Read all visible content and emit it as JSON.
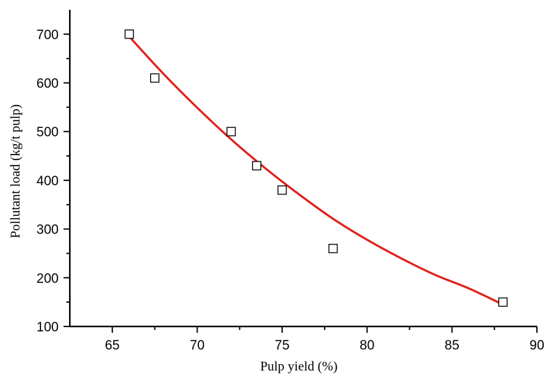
{
  "chart_data": {
    "type": "scatter",
    "title": "",
    "xlabel": "Pulp yield (%)",
    "ylabel": "Pollutant load (kg/t pulp)",
    "xlim": [
      62.5,
      90
    ],
    "ylim": [
      100,
      750
    ],
    "xticks": [
      65,
      70,
      75,
      80,
      85,
      90
    ],
    "yticks": [
      100,
      200,
      300,
      400,
      500,
      600,
      700
    ],
    "grid": false,
    "legend": "none",
    "series": [
      {
        "kind": "markers",
        "marker": "open-square",
        "color": "#000000",
        "x": [
          66,
          67.5,
          72,
          73.5,
          75,
          78,
          88
        ],
        "y": [
          700,
          610,
          500,
          430,
          380,
          260,
          150
        ]
      },
      {
        "kind": "fit-line",
        "color": "#e0201a",
        "x": [
          66,
          68,
          70,
          72,
          74,
          76,
          78,
          80,
          82,
          84,
          86,
          88
        ],
        "y": [
          695,
          619,
          549,
          484,
          425,
          371,
          321,
          278,
          240,
          206,
          178,
          145
        ]
      }
    ]
  }
}
